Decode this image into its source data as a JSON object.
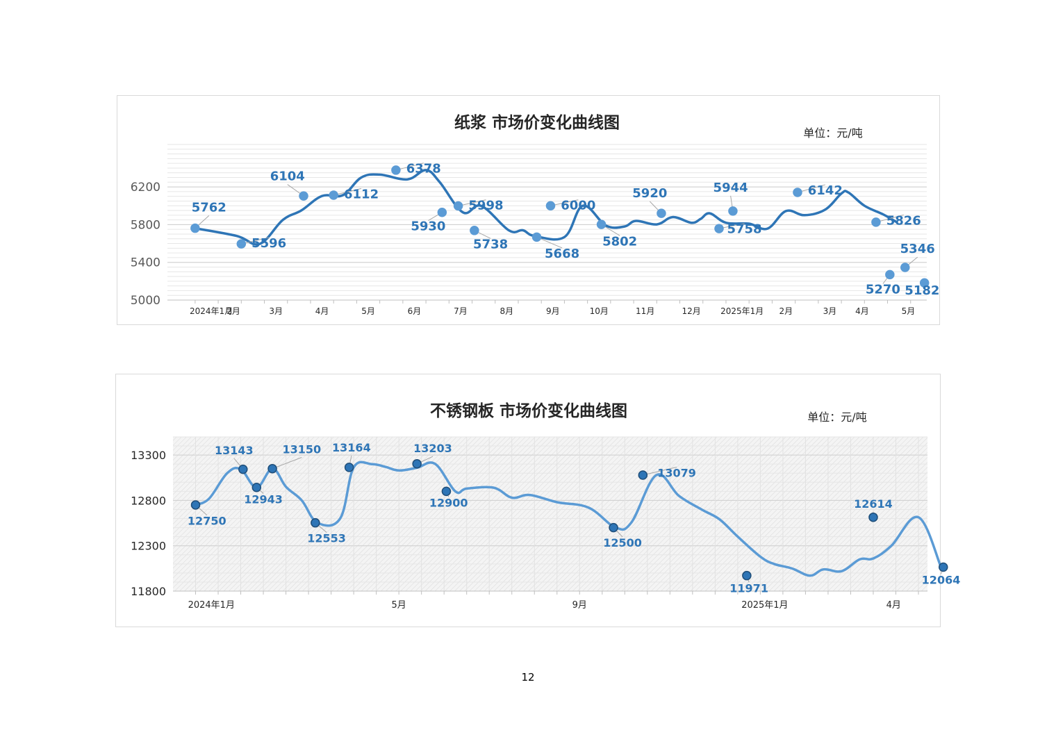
{
  "page": {
    "number": "12"
  },
  "chart_data": [
    {
      "type": "line",
      "title": "纸浆 市场价变化曲线图",
      "unit": "单位：元/吨",
      "ylim": [
        5000,
        6650
      ],
      "yticks": [
        "5000",
        "5400",
        "5800",
        "6200"
      ],
      "yticks_values": [
        5000,
        5400,
        5800,
        6200
      ],
      "xtick_labels": [
        "2024年1月",
        "2月",
        "3月",
        "4月",
        "5月",
        "6月",
        "7月",
        "8月",
        "9月",
        "10月",
        "11月",
        "12月",
        "2025年1月",
        "2月",
        "3月",
        "4月",
        "5月"
      ],
      "xtick_values": [
        0.35,
        0.83,
        1.75,
        2.75,
        3.75,
        4.75,
        5.75,
        6.75,
        7.75,
        8.75,
        9.75,
        10.75,
        11.85,
        12.8,
        13.75,
        14.45,
        15.45
      ],
      "xlim": [
        -0.6,
        15.85
      ],
      "grid": true,
      "line_color": "#2e75b6",
      "marker_color": "#5b9bd5",
      "series": [
        {
          "x": [
            0,
            0.9,
            1.4,
            1.9,
            2.3,
            2.75,
            3.2,
            3.6,
            4.0,
            4.6,
            5.0,
            5.3,
            5.8,
            6.2,
            6.8,
            7.1,
            7.35,
            8.0,
            8.4,
            8.9,
            9.3,
            9.55,
            10.0,
            10.35,
            10.75,
            10.95,
            11.15,
            11.5,
            12.0,
            12.4,
            12.8,
            13.2,
            13.65,
            14.0,
            14.15,
            14.5,
            14.9,
            15.2
          ],
          "y": [
            5762,
            5680,
            5596,
            5850,
            5950,
            6104,
            6112,
            6300,
            6330,
            6280,
            6378,
            6250,
            5930,
            5998,
            5738,
            5740,
            5680,
            5668,
            6000,
            5790,
            5780,
            5840,
            5802,
            5880,
            5820,
            5860,
            5920,
            5820,
            5810,
            5758,
            5944,
            5900,
            5960,
            6130,
            6142,
            6000,
            5910,
            5826
          ]
        }
      ],
      "points": [
        {
          "x": 0,
          "y": 5762,
          "label": "5762",
          "lx": 0.3,
          "ly": 5940
        },
        {
          "x": 1.0,
          "y": 5596,
          "label": "5596",
          "lx": 1.6,
          "ly": 5560
        },
        {
          "x": 2.35,
          "y": 6104,
          "label": "6104",
          "lx": 2.0,
          "ly": 6270
        },
        {
          "x": 3.0,
          "y": 6112,
          "label": "6112",
          "lx": 3.6,
          "ly": 6080
        },
        {
          "x": 4.35,
          "y": 6378,
          "label": "6378",
          "lx": 4.95,
          "ly": 6350
        },
        {
          "x": 5.35,
          "y": 5930,
          "label": "5930",
          "lx": 5.05,
          "ly": 5740
        },
        {
          "x": 5.7,
          "y": 5998,
          "label": "5998",
          "lx": 6.3,
          "ly": 5960
        },
        {
          "x": 6.05,
          "y": 5738,
          "label": "5738",
          "lx": 6.4,
          "ly": 5550
        },
        {
          "x": 7.4,
          "y": 5668,
          "label": "5668",
          "lx": 7.95,
          "ly": 5450
        },
        {
          "x": 7.7,
          "y": 6000,
          "label": "6000",
          "lx": 8.3,
          "ly": 5960
        },
        {
          "x": 8.8,
          "y": 5802,
          "label": "5802",
          "lx": 9.2,
          "ly": 5580
        },
        {
          "x": 10.1,
          "y": 5920,
          "label": "5920",
          "lx": 9.85,
          "ly": 6090
        },
        {
          "x": 11.35,
          "y": 5758,
          "label": "5758",
          "lx": 11.9,
          "ly": 5710
        },
        {
          "x": 11.65,
          "y": 5944,
          "label": "5944",
          "lx": 11.6,
          "ly": 6150
        },
        {
          "x": 13.05,
          "y": 6142,
          "label": "6142",
          "lx": 13.65,
          "ly": 6120
        },
        {
          "x": 14.75,
          "y": 5826,
          "label": "5826",
          "lx": 15.35,
          "ly": 5800
        },
        {
          "x": 15.05,
          "y": 5270,
          "label": "5270",
          "lx": 14.9,
          "ly": 5070
        },
        {
          "x": 15.38,
          "y": 5346,
          "label": "5346",
          "lx": 15.65,
          "ly": 5500
        },
        {
          "x": 15.8,
          "y": 5182,
          "label": "5182",
          "lx": 15.75,
          "ly": 5060
        }
      ]
    },
    {
      "type": "line",
      "title": "不锈钢板 市场价变化曲线图",
      "unit": "单位：元/吨",
      "ylim": [
        11800,
        13500
      ],
      "yticks": [
        "11800",
        "12300",
        "12800",
        "13300"
      ],
      "yticks_values": [
        11800,
        12300,
        12800,
        13300
      ],
      "xtick_labels": [
        "2024年1月",
        "5月",
        "9月",
        "2025年1月",
        "4月"
      ],
      "xtick_values": [
        0.35,
        4.5,
        8.5,
        12.6,
        15.45
      ],
      "xlim": [
        -0.5,
        16.2
      ],
      "grid": true,
      "line_color": "#5b9bd5",
      "marker_color": "#2e75b6",
      "series": [
        {
          "x": [
            0,
            0.3,
            0.7,
            1.0,
            1.35,
            1.7,
            2.0,
            2.35,
            2.7,
            3.2,
            3.5,
            3.9,
            4.2,
            4.5,
            4.9,
            5.3,
            5.75,
            6.0,
            6.6,
            7.0,
            7.4,
            8.0,
            8.7,
            9.3,
            9.65,
            10.2,
            10.7,
            11.2,
            11.6,
            12.0,
            12.5,
            12.8,
            13.2,
            13.6,
            13.9,
            14.3,
            14.7,
            15.0,
            15.4,
            16.0,
            16.5
          ],
          "y": [
            12750,
            12820,
            13100,
            13143,
            12943,
            13150,
            12950,
            12800,
            12553,
            12600,
            13164,
            13200,
            13170,
            13130,
            13160,
            13203,
            12900,
            12930,
            12940,
            12830,
            12860,
            12780,
            12720,
            12500,
            12560,
            13079,
            12850,
            12700,
            12590,
            12400,
            12180,
            12100,
            12050,
            11971,
            12040,
            12020,
            12150,
            12160,
            12300,
            12614,
            12064
          ]
        }
      ],
      "points": [
        {
          "x": 0,
          "y": 12750,
          "label": "12750",
          "lx": 0.25,
          "ly": 12530
        },
        {
          "x": 1.05,
          "y": 13143,
          "label": "13143",
          "lx": 0.85,
          "ly": 13310
        },
        {
          "x": 1.35,
          "y": 12943,
          "label": "12943",
          "lx": 1.5,
          "ly": 12770
        },
        {
          "x": 1.7,
          "y": 13150,
          "label": "13150",
          "lx": 2.35,
          "ly": 13320
        },
        {
          "x": 2.65,
          "y": 12553,
          "label": "12553",
          "lx": 2.9,
          "ly": 12340
        },
        {
          "x": 3.4,
          "y": 13164,
          "label": "13164",
          "lx": 3.45,
          "ly": 13340
        },
        {
          "x": 4.9,
          "y": 13203,
          "label": "13203",
          "lx": 5.25,
          "ly": 13330
        },
        {
          "x": 5.55,
          "y": 12900,
          "label": "12900",
          "lx": 5.6,
          "ly": 12730
        },
        {
          "x": 9.25,
          "y": 12500,
          "label": "12500",
          "lx": 9.45,
          "ly": 12290
        },
        {
          "x": 9.9,
          "y": 13079,
          "label": "13079",
          "lx": 10.65,
          "ly": 13060
        },
        {
          "x": 12.2,
          "y": 11971,
          "label": "11971",
          "lx": 12.25,
          "ly": 11790
        },
        {
          "x": 15.0,
          "y": 12614,
          "label": "12614",
          "lx": 15.0,
          "ly": 12720
        },
        {
          "x": 16.55,
          "y": 12064,
          "label": "12064",
          "lx": 16.5,
          "ly": 11880
        }
      ]
    }
  ]
}
